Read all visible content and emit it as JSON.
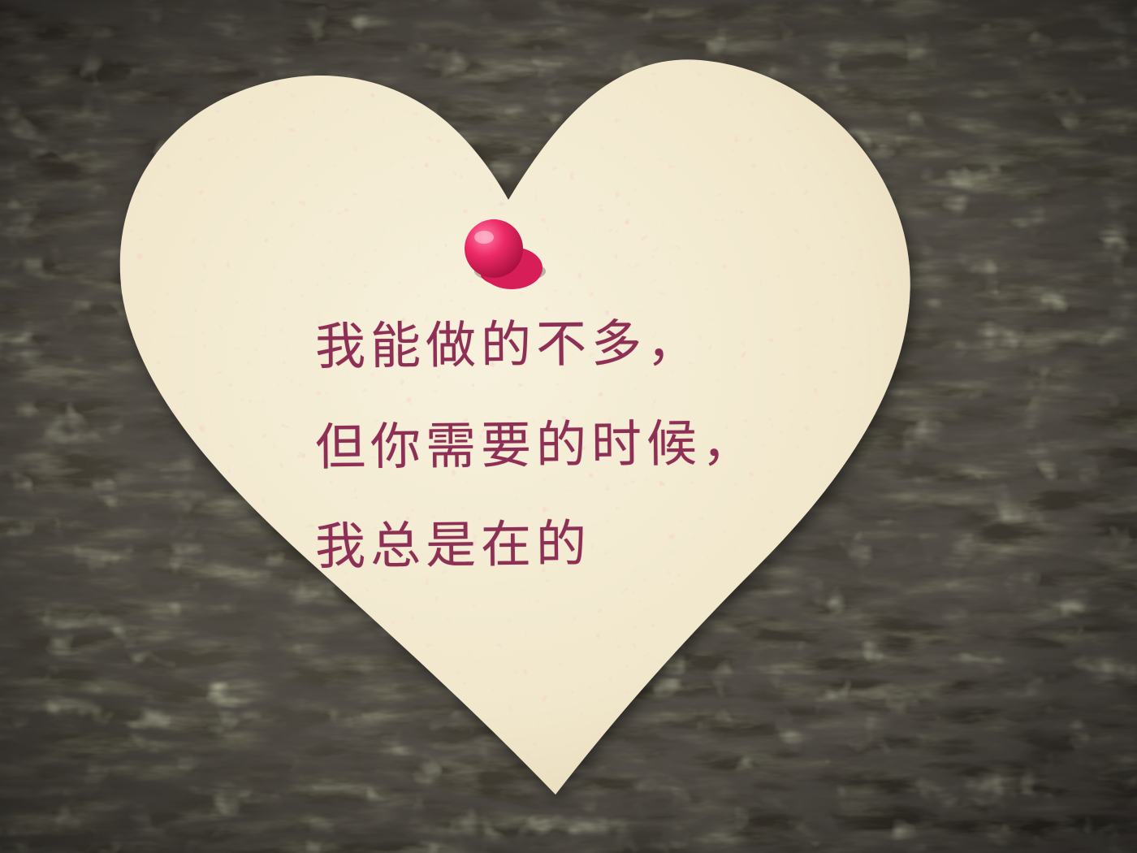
{
  "note": {
    "lines": [
      "我能做的不多，",
      "但你需要的时候，",
      "我总是在的"
    ]
  },
  "objects": {
    "background": "tree-bark",
    "note_shape": "heart-paper-note",
    "pin": "push-pin-icon"
  },
  "colors": {
    "text": "#8e2f55",
    "paper": "#f4ecd5",
    "pin": "#e8245f",
    "bark_dark": "#2b2621",
    "bark_light": "#8a8a62",
    "lichen": "#b9b98a"
  }
}
